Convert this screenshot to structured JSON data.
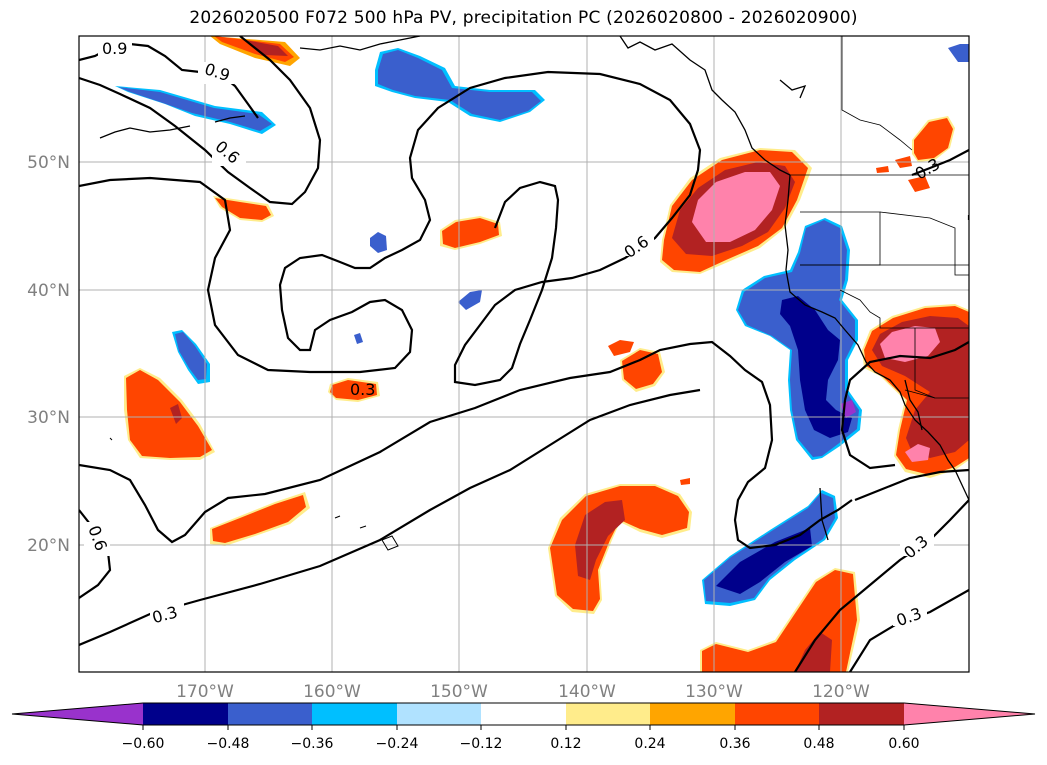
{
  "title": "2026020500 F072 500 hPa PV, precipitation PC (2026020800 - 2026020900)",
  "map": {
    "lat_labels": [
      "50°N",
      "40°N",
      "30°N",
      "20°N"
    ],
    "lon_labels": [
      "170°W",
      "160°W",
      "150°W",
      "140°W",
      "130°W",
      "120°W"
    ],
    "contour_labels": [
      "0.9",
      "0.9",
      "0.6",
      "0.6",
      "0.3",
      "0.3",
      "0.6",
      "0.3",
      "0.3",
      "0.3"
    ]
  },
  "colorbar": {
    "colors": [
      "#9932CC",
      "#00008B",
      "#3A5FCD",
      "#00BFFF",
      "#B0E2FF",
      "#FFFFFF",
      "#FFEC8B",
      "#FFA500",
      "#FF4500",
      "#B22222",
      "#FF82AB"
    ],
    "ticks": [
      "−0.60",
      "−0.48",
      "−0.36",
      "−0.24",
      "−0.12",
      "0.12",
      "0.24",
      "0.36",
      "0.48",
      "0.60"
    ]
  },
  "colors": {
    "neg_strong": "#00008B",
    "neg_mid": "#3A5FCD",
    "neg_light": "#00BFFF",
    "pos_light": "#FFEC8B",
    "pos_mid": "#FFA500",
    "pos_strong": "#FF4500",
    "pos_dark": "#B22222",
    "pos_max": "#FF82AB",
    "neg_max": "#9932CC"
  }
}
